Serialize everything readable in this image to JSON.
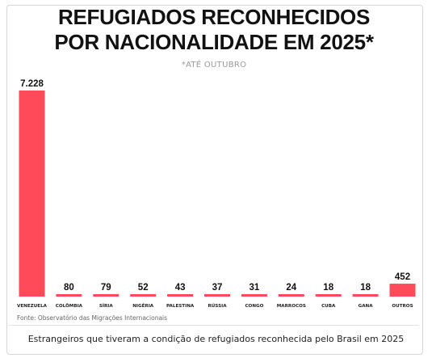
{
  "chart_data": {
    "type": "bar",
    "title_lines": [
      "REFUGIADOS RECONHECIDOS",
      "POR NACIONALIDADE EM 2025*"
    ],
    "subtitle": "*ATÉ OUTUBRO",
    "categories": [
      "VENEZUELA",
      "COLÔMBIA",
      "SÍRIA",
      "NIGÉRIA",
      "PALESTINA",
      "RÚSSIA",
      "CONGO",
      "MARROCOS",
      "CUBA",
      "GANA",
      "OUTROS"
    ],
    "values": [
      7228,
      80,
      79,
      52,
      43,
      37,
      31,
      24,
      18,
      18,
      452
    ],
    "value_labels": [
      "7.228",
      "80",
      "79",
      "52",
      "43",
      "37",
      "31",
      "24",
      "18",
      "18",
      "452"
    ],
    "ylim": [
      0,
      7228
    ],
    "bar_color": "#ff4a5a",
    "source": "Fonte: Observatório das Migrações Internacionais"
  },
  "caption": "Estrangeiros que tiveram a condição de refugiados reconhecida pelo Brasil em 2025"
}
